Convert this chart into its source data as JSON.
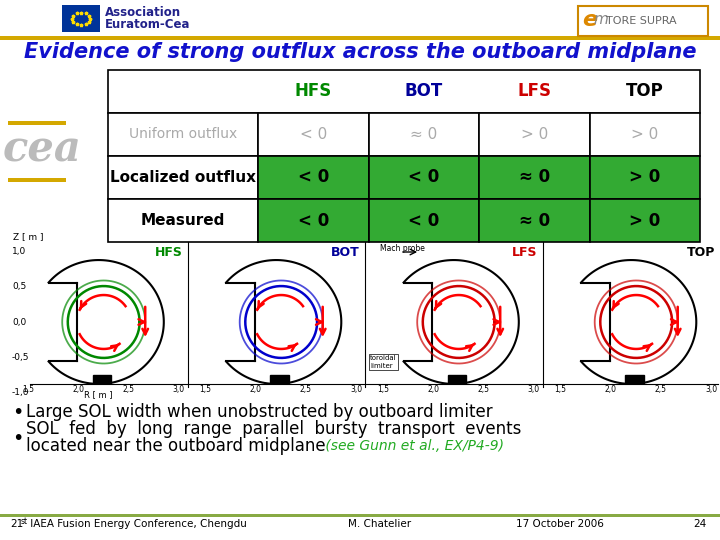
{
  "bg_color": "#ffffff",
  "header_line_color": "#d4a800",
  "title_text": "Evidence of strong outflux across the outboard midplane",
  "title_color": "#1111cc",
  "assoc_line1": "Association",
  "assoc_line2": "Euratom-Cea",
  "assoc_text_color": "#22228a",
  "eu_flag_color": "#003399",
  "eu_star_color": "#ffdd00",
  "tore_supra_box_color": "#cc8800",
  "table_headers": [
    "HFS",
    "BOT",
    "LFS",
    "TOP"
  ],
  "table_header_colors": [
    "#008800",
    "#000099",
    "#cc0000",
    "#000000"
  ],
  "row0_label": "Uniform outflux",
  "row0_label_color": "#aaaaaa",
  "row0_values": [
    "< 0",
    "≈ 0",
    "> 0",
    "> 0"
  ],
  "row0_val_color": "#aaaaaa",
  "row0_bg": "#ffffff",
  "row1_label": "Localized outflux",
  "row1_label_color": "#000000",
  "row1_values": [
    "< 0",
    "< 0",
    "≈ 0",
    "> 0"
  ],
  "row1_val_color": "#000000",
  "row1_bg": "#33aa33",
  "row2_label": "Measured",
  "row2_label_color": "#000000",
  "row2_values": [
    "< 0",
    "< 0",
    "≈ 0",
    "> 0"
  ],
  "row2_val_color": "#000000",
  "row2_bg": "#33aa33",
  "diag_labels": [
    "HFS",
    "BOT",
    "LFS",
    "TOP"
  ],
  "diag_label_colors": [
    "#008800",
    "#000099",
    "#cc0000",
    "#000000"
  ],
  "diag_outline_colors": [
    "#008800",
    "#0000cc",
    "#cc0000",
    "#000000"
  ],
  "diag_inner_colors": [
    "#008800",
    "#0000cc",
    "#cc0000",
    "#cc0000"
  ],
  "bullet1": "Large SOL width when unobstructed by outboard limiter",
  "bullet2a": "SOL  fed  by  long  range  parallel  bursty  transport  events",
  "bullet2b": "located near the outboard midplane",
  "bullet2_ref": " (see Gunn et al., EX/P4-9)",
  "bullet2_ref_color": "#22aa22",
  "footer_conf": "21",
  "footer_conf_rest": "st IAEA Fusion Energy Conference, Chengdu",
  "footer_author": "M. Chatelier",
  "footer_date": "17 October 2006",
  "footer_page": "24",
  "footer_line_color": "#88aa44",
  "cea_color": "#bbbbbb"
}
